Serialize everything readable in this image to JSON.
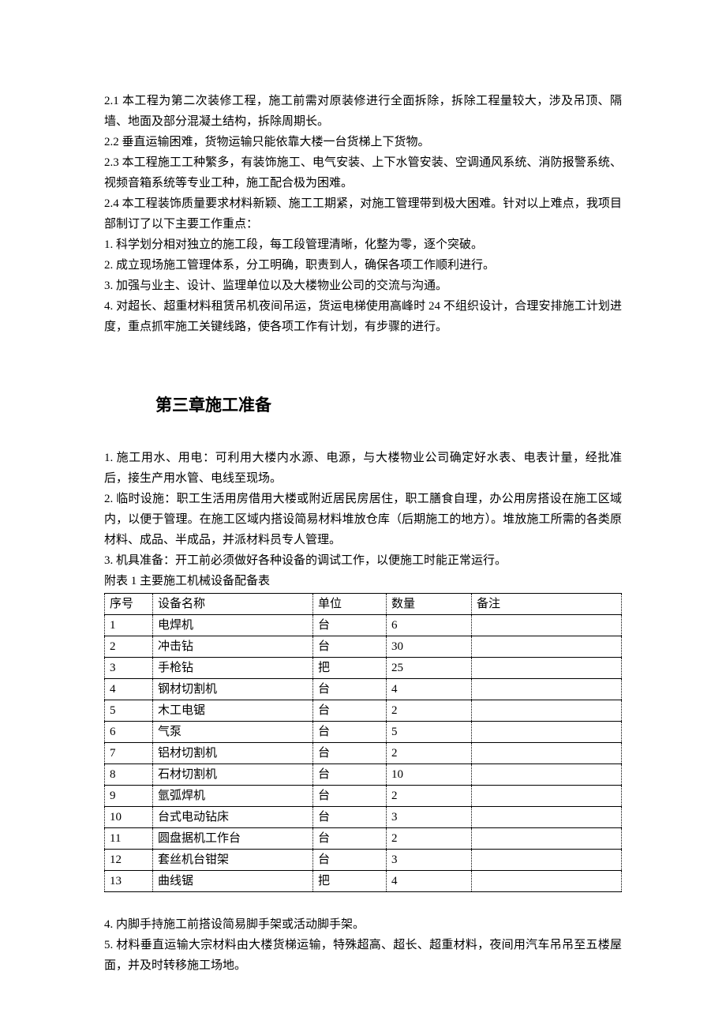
{
  "section_a": {
    "p1": "2.1 本工程为第二次装修工程，施工前需对原装修进行全面拆除，拆除工程量较大，涉及吊顶、隔墙、地面及部分混凝土结构，拆除周期长。",
    "p2": "2.2 垂直运输困难，货物运输只能依靠大楼一台货梯上下货物。",
    "p3": "2.3 本工程施工工种繁多，有装饰施工、电气安装、上下水管安装、空调通风系统、消防报警系统、视频音箱系统等专业工种，施工配合极为困难。",
    "p4": "2.4 本工程装饰质量要求材料新颖、施工工期紧，对施工管理带到极大困难。针对以上难点，我项目部制订了以下主要工作重点：",
    "p5": "1. 科学划分相对独立的施工段，每工段管理清晰，化整为零，逐个突破。",
    "p6": "2. 成立现场施工管理体系，分工明确，职责到人，确保各项工作顺利进行。",
    "p7": "3. 加强与业主、设计、监理单位以及大楼物业公司的交流与沟通。",
    "p8": "4. 对超长、超重材料租赁吊机夜间吊运，货运电梯使用高峰时 24 不组织设计，合理安排施工计划进度，重点抓牢施工关键线路，使各项工作有计划，有步骤的进行。"
  },
  "chapter3": {
    "title": "第三章施工准备",
    "p1": "1. 施工用水、用电：可利用大楼内水源、电源，与大楼物业公司确定好水表、电表计量，经批准后，接生产用水管、电线至现场。",
    "p2": "2. 临时设施：职工生活用房借用大楼或附近居民房居住，职工膳食自理，办公用房搭设在施工区域内，以便于管理。在施工区域内搭设简易材料堆放仓库（后期施工的地方）。堆放施工所需的各类原材料、成品、半成品，并派材料员专人管理。",
    "p3": "3. 机具准备：开工前必须做好各种设备的调试工作，以便施工时能正常运行。",
    "table_title": "附表 1 主要施工机械设备配备表",
    "columns": {
      "c1": "序号",
      "c2": "设备名称",
      "c3": "单位",
      "c4": "数量",
      "c5": "备注"
    },
    "rows": [
      {
        "idx": "1",
        "name": "电焊机",
        "unit": "台",
        "qty": "6",
        "note": ""
      },
      {
        "idx": "2",
        "name": "冲击钻",
        "unit": "台",
        "qty": "30",
        "note": ""
      },
      {
        "idx": "3",
        "name": "手枪钻",
        "unit": "把",
        "qty": "25",
        "note": ""
      },
      {
        "idx": "4",
        "name": "钢材切割机",
        "unit": "台",
        "qty": "4",
        "note": ""
      },
      {
        "idx": "5",
        "name": "木工电锯",
        "unit": "台",
        "qty": "2",
        "note": ""
      },
      {
        "idx": "6",
        "name": "气泵",
        "unit": "台",
        "qty": "5",
        "note": ""
      },
      {
        "idx": "7",
        "name": "铝材切割机",
        "unit": "台",
        "qty": "2",
        "note": ""
      },
      {
        "idx": "8",
        "name": "石材切割机",
        "unit": "台",
        "qty": "10",
        "note": ""
      },
      {
        "idx": "9",
        "name": "氩弧焊机",
        "unit": "台",
        "qty": "2",
        "note": ""
      },
      {
        "idx": "10",
        "name": "台式电动钻床",
        "unit": "台",
        "qty": "3",
        "note": ""
      },
      {
        "idx": "11",
        "name": "圆盘据机工作台",
        "unit": "台",
        "qty": "2",
        "note": ""
      },
      {
        "idx": "12",
        "name": "套丝机台钳架",
        "unit": "台",
        "qty": "3",
        "note": ""
      },
      {
        "idx": "13",
        "name": "曲线锯",
        "unit": "把",
        "qty": "4",
        "note": ""
      }
    ],
    "p4": "4. 内脚手持施工前搭设简易脚手架或活动脚手架。",
    "p5": "5. 材料垂直运输大宗材料由大楼货梯运输，特殊超高、超长、超重材料，夜间用汽车吊吊至五楼屋面，并及时转移施工场地。"
  }
}
